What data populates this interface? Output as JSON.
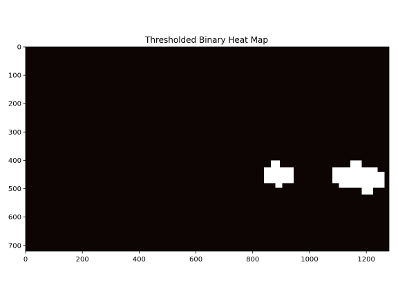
{
  "chart_data": {
    "type": "heatmap",
    "title": "Thresholded Binary Heat Map",
    "xlabel": "",
    "ylabel": "",
    "xlim": [
      0,
      1280
    ],
    "ylim": [
      720,
      0
    ],
    "x_ticks": [
      0,
      200,
      400,
      600,
      800,
      1000,
      1200
    ],
    "y_ticks": [
      0,
      100,
      200,
      300,
      400,
      500,
      600,
      700
    ],
    "colormap": {
      "background": "#0d0404",
      "foreground": "#ffffff"
    },
    "grid": false,
    "threshold_regions": [
      {
        "x": [
          864,
          896
        ],
        "y": [
          400,
          424
        ]
      },
      {
        "x": [
          840,
          944
        ],
        "y": [
          424,
          480
        ]
      },
      {
        "x": [
          880,
          904
        ],
        "y": [
          480,
          496
        ]
      },
      {
        "x": [
          1144,
          1184
        ],
        "y": [
          400,
          424
        ]
      },
      {
        "x": [
          1080,
          1240
        ],
        "y": [
          424,
          480
        ]
      },
      {
        "x": [
          1240,
          1264
        ],
        "y": [
          440,
          496
        ]
      },
      {
        "x": [
          1104,
          1240
        ],
        "y": [
          480,
          496
        ]
      },
      {
        "x": [
          1184,
          1224
        ],
        "y": [
          496,
          520
        ]
      }
    ]
  }
}
